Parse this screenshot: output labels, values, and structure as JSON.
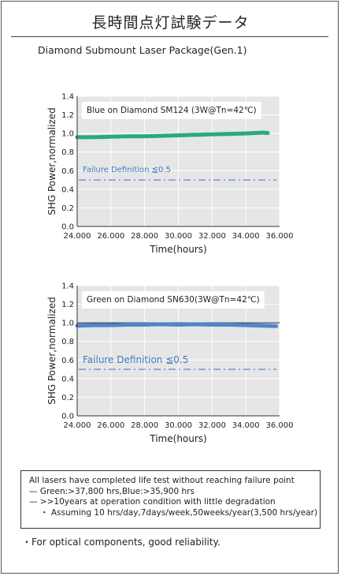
{
  "page": {
    "title": "長時間点灯試験データ",
    "subtitle": "Diamond Submount Laser Package(Gen.1)"
  },
  "chart_data": [
    {
      "type": "line",
      "label": "Blue on Diamond SM124 (3W@Tn=42℃)",
      "annotation": "Failure Definition ≦0.5",
      "xlabel": "Time(hours)",
      "ylabel": "SHG Power,normalized",
      "xlim": [
        24000,
        36000
      ],
      "ylim": [
        0,
        1.4
      ],
      "x_ticks": [
        "24.000",
        "26.000",
        "28.000",
        "30.000",
        "32.000",
        "34.000",
        "36.000"
      ],
      "y_ticks": [
        "0.0",
        "0.2",
        "0.4",
        "0.6",
        "0.8",
        "1.0",
        "1.2",
        "1.4"
      ],
      "grid": true,
      "failure_threshold": 0.5,
      "reference_line": null,
      "series": [
        {
          "color": "#2aa882",
          "x": [
            24000,
            25000,
            26000,
            27000,
            28000,
            29000,
            30000,
            31000,
            32000,
            33000,
            34000,
            34500,
            35000,
            35300
          ],
          "y": [
            0.96,
            0.96,
            0.965,
            0.97,
            0.97,
            0.975,
            0.98,
            0.985,
            0.99,
            0.995,
            1.0,
            1.005,
            1.01,
            1.005
          ]
        }
      ]
    },
    {
      "type": "line",
      "label": "Green on Diamond SN630(3W@Tn=42℃)",
      "annotation": "Failure Definition ≦0.5",
      "xlabel": "Time(hours)",
      "ylabel": "SHG Power,normalized",
      "xlim": [
        24000,
        36000
      ],
      "ylim": [
        0,
        1.4
      ],
      "x_ticks": [
        "24.000",
        "26.000",
        "28.000",
        "30.000",
        "32.000",
        "34.000",
        "36.000"
      ],
      "y_ticks": [
        "0.0",
        "0.2",
        "0.4",
        "0.6",
        "0.8",
        "1.0",
        "1.2",
        "1.4"
      ],
      "grid": true,
      "failure_threshold": 0.5,
      "reference_line": 1.0,
      "series": [
        {
          "color": "#4f86c6",
          "x": [
            24000,
            25000,
            26000,
            27000,
            28000,
            29000,
            30000,
            31000,
            32000,
            33000,
            34000,
            35000,
            35800
          ],
          "y": [
            0.97,
            0.975,
            0.975,
            0.98,
            0.98,
            0.985,
            0.98,
            0.985,
            0.98,
            0.98,
            0.975,
            0.97,
            0.965
          ]
        }
      ]
    }
  ],
  "notes": {
    "line1": "All lasers have completed life test without reaching failure point",
    "line2": "— Green:>37,800 hrs,Blue:>35,900 hrs",
    "line3": "— >>10years at operation condition with little degradation",
    "line4": "・ Assuming 10 hrs/day,7days/week,50weeks/year(3,500 hrs/year)"
  },
  "footer": "・For optical components, good reliability.",
  "colors": {
    "plot_bg": "#e6e6e6",
    "gridline": "#ffffff",
    "threshold": "#4a7fc0",
    "annotation_text": "#3b7cc4"
  }
}
